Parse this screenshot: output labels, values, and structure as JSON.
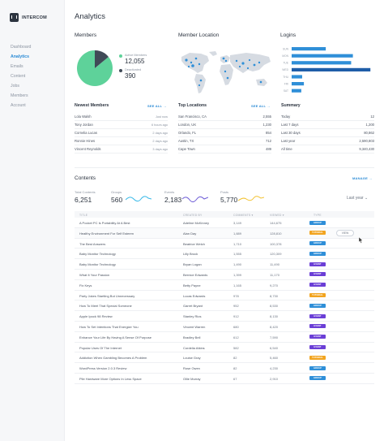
{
  "app": {
    "name": "INTERCOM"
  },
  "sidebar": {
    "items": [
      "Dashboard",
      "Analytics",
      "Emails",
      "Content",
      "Jobs",
      "Members",
      "Account"
    ],
    "active_index": 1
  },
  "page": {
    "title": "Analytics"
  },
  "members": {
    "title": "Member",
    "title_full": "Members",
    "active_label": "Active Members",
    "active_value": "12,055",
    "deactivated_label": "Deactivated",
    "deactivated_value": "390",
    "active_color": "#5ed29a",
    "deactivated_color": "#404a57"
  },
  "location": {
    "title": "Member Location"
  },
  "logins": {
    "title": "Logins",
    "chart_data": {
      "type": "bar",
      "orientation": "horizontal",
      "categories": [
        "SUN",
        "MON",
        "TUE",
        "WED",
        "THU",
        "FRI",
        "SAT"
      ],
      "values": [
        390,
        700,
        680,
        900,
        120,
        140,
        110
      ],
      "colors": [
        "#2f8fd8",
        "#2f8fd8",
        "#2f8fd8",
        "#1f5ea8",
        "#2f8fd8",
        "#2f8fd8",
        "#2f8fd8"
      ],
      "xlim": [
        0,
        1000
      ]
    }
  },
  "newest_members": {
    "title": "Newest Members",
    "see_all": "SEE ALL →",
    "rows": [
      {
        "name": "Lola Walsh",
        "time": "Just now"
      },
      {
        "name": "Tony Jordan",
        "time": "6 hours ago"
      },
      {
        "name": "Cornelia Lucas",
        "time": "2 days ago"
      },
      {
        "name": "Ronnie Hines",
        "time": "2 days ago"
      },
      {
        "name": "Vincent Reynolds",
        "time": "3 days ago"
      }
    ]
  },
  "top_locations": {
    "title": "Top Locations",
    "see_all": "SEE ALL →",
    "rows": [
      {
        "city": "San Francisco, CA",
        "count": "2,555"
      },
      {
        "city": "London, UK",
        "count": "1,230"
      },
      {
        "city": "Orlando, FL",
        "count": "854"
      },
      {
        "city": "Austin, TX",
        "count": "712"
      },
      {
        "city": "Cape Town",
        "count": "489"
      }
    ]
  },
  "summary": {
    "title": "Summary",
    "rows": [
      {
        "period": "Today",
        "count": "12"
      },
      {
        "period": "Last 7 days",
        "count": "1,200"
      },
      {
        "period": "Last 30 days",
        "count": "80,862"
      },
      {
        "period": "Last year",
        "count": "2,590,803"
      },
      {
        "period": "All time",
        "count": "9,340,430"
      }
    ]
  },
  "contents": {
    "title": "Contents",
    "manage": "MANAGE →",
    "period": "Last year ⌄",
    "stats": [
      {
        "label": "Total Contents",
        "value": "6,251",
        "color": ""
      },
      {
        "label": "Groups",
        "value": "560",
        "color": "#35b8e8"
      },
      {
        "label": "Events",
        "value": "2,183",
        "color": "#6b5ad6"
      },
      {
        "label": "Posts",
        "value": "5,770",
        "color": "#f2c12e"
      }
    ],
    "columns": [
      "TITLE",
      "CREATED BY",
      "COMMENTS ▾",
      "VIEWED ▾",
      "TYPE"
    ],
    "view_label": "VIEW",
    "type_colors": {
      "GROUP": "#2f8fd8",
      "EVENT": "#6b3fd6",
      "TUTORIAL": "#f2a41f"
    },
    "rows": [
      {
        "title": "A Pocket PC Is Portability At A Best",
        "creator": "Adeline McKinney",
        "comments": "3,149",
        "viewed": "144,675",
        "type": "GROUP"
      },
      {
        "title": "Healthy Environment For Self Esteem",
        "creator": "Alan Day",
        "comments": "1,889",
        "viewed": "128,810",
        "type": "TUTORIAL"
      },
      {
        "title": "The Best Answers",
        "creator": "Beatrice Welch",
        "comments": "1,710",
        "viewed": "100,378",
        "type": "GROUP"
      },
      {
        "title": "Baby Monitor Technology",
        "creator": "Lilly Brock",
        "comments": "1,555",
        "viewed": "120,309",
        "type": "GROUP"
      },
      {
        "title": "Baby Monitor Technology",
        "creator": "Bryan Logan",
        "comments": "1,490",
        "viewed": "11,490",
        "type": "EVENT"
      },
      {
        "title": "What It Your Passion",
        "creator": "Bernice Edwards",
        "comments": "1,399",
        "viewed": "11,170",
        "type": "EVENT"
      },
      {
        "title": "Fix Keys",
        "creator": "Betty Payne",
        "comments": "1,165",
        "viewed": "9,270",
        "type": "EVENT"
      },
      {
        "title": "Party Jokes Startling But Unnecessary",
        "creator": "Lucas Edwards",
        "comments": "978",
        "viewed": "8,730",
        "type": "TUTORIAL"
      },
      {
        "title": "How To Meet That Special Someone",
        "creator": "Garret Bryant",
        "comments": "952",
        "viewed": "8,530",
        "type": "GROUP"
      },
      {
        "title": "Apple Ipock 98 Review",
        "creator": "Stanley Rios",
        "comments": "912",
        "viewed": "8,130",
        "type": "EVENT"
      },
      {
        "title": "How To Set Intentions That Energize You",
        "creator": "Vincent Warren",
        "comments": "680",
        "viewed": "8,420",
        "type": "EVENT"
      },
      {
        "title": "Enhance Your Life By Having A Sense Of Purpose",
        "creator": "Bradley Bell",
        "comments": "612",
        "viewed": "7,590",
        "type": "EVENT"
      },
      {
        "title": "Popular Uses Of The Internet",
        "creator": "Cordelia Atkins",
        "comments": "582",
        "viewed": "6,540",
        "type": "EVENT"
      },
      {
        "title": "Addiction When Gambling Becomes A Problem",
        "creator": "Louise Gray",
        "comments": "82",
        "viewed": "5,460",
        "type": "TUTORIAL"
      },
      {
        "title": "WordPress Version 2.0.3 Review",
        "creator": "Rose Owen",
        "comments": "82",
        "viewed": "4,230",
        "type": "GROUP"
      },
      {
        "title": "Pile Hardware More Options In Less Space",
        "creator": "Ollie Murray",
        "comments": "67",
        "viewed": "2,910",
        "type": "GROUP"
      }
    ]
  }
}
